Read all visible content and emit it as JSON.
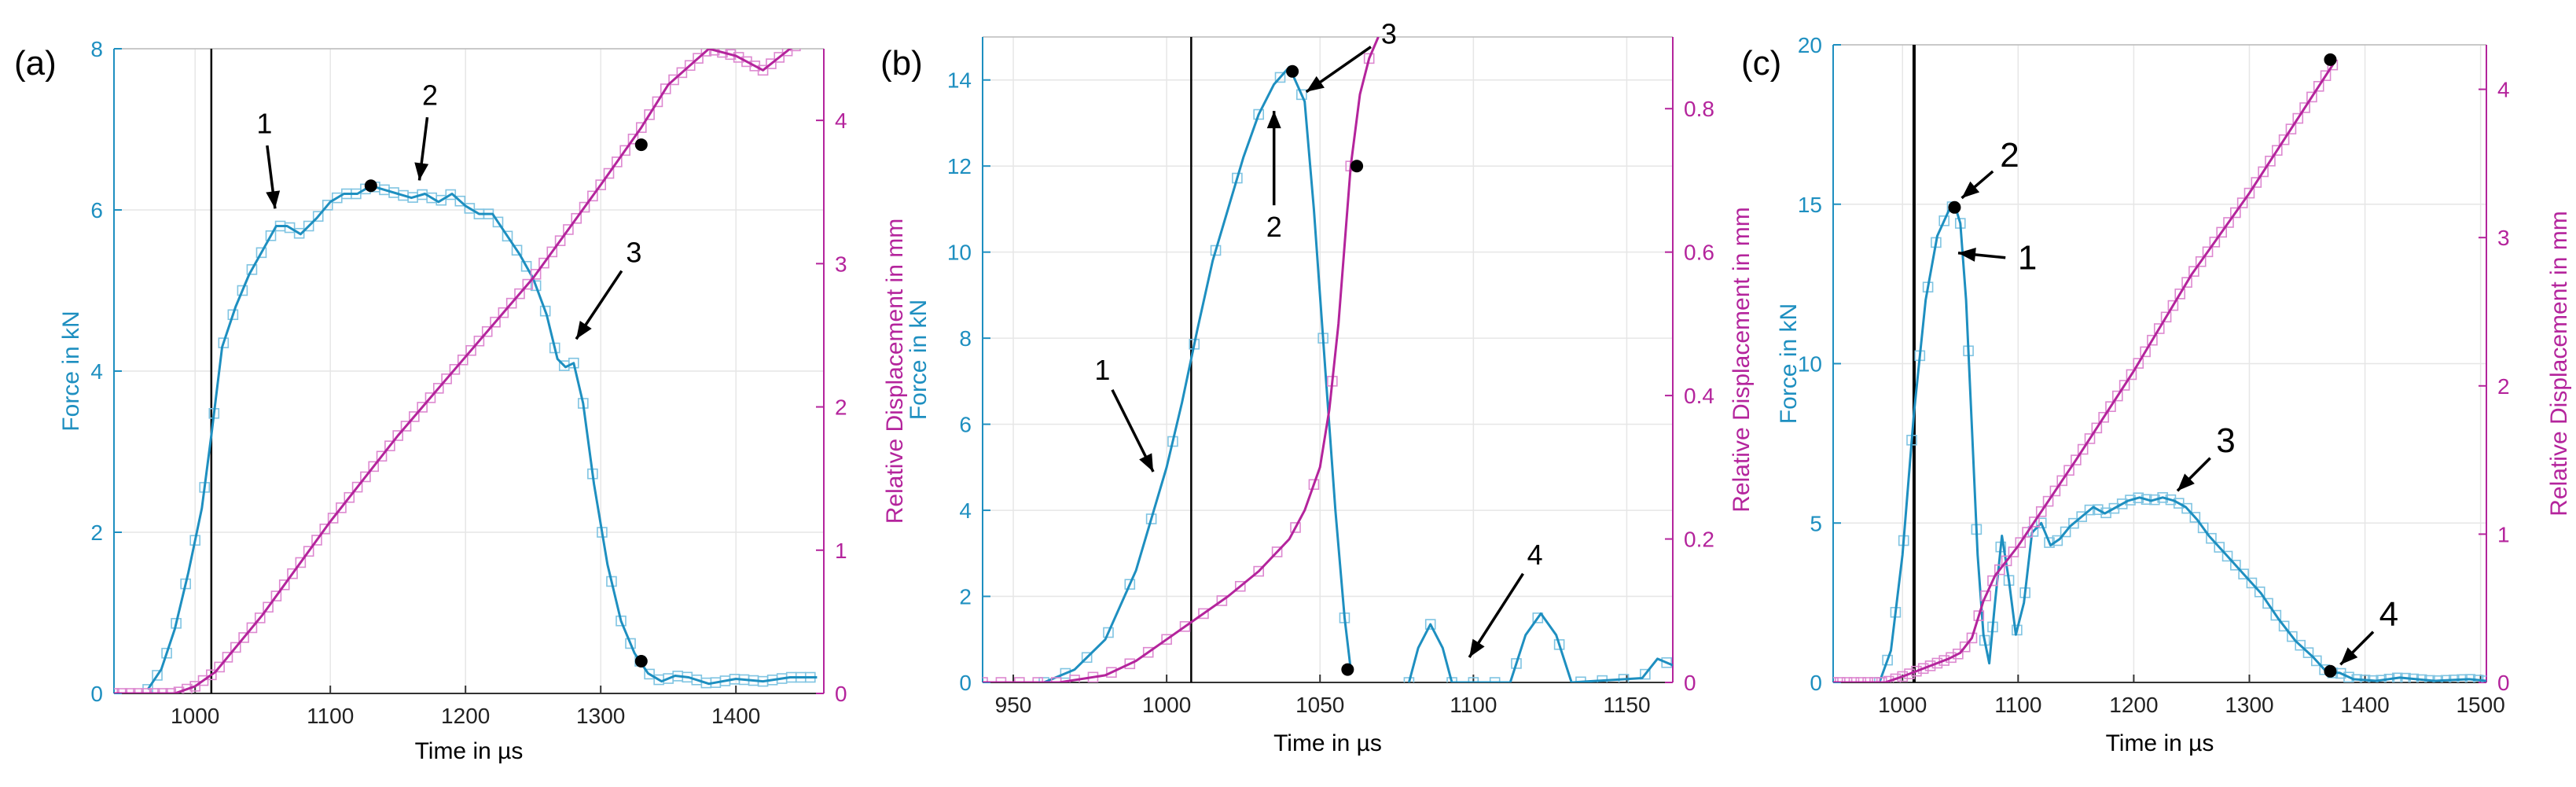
{
  "colors": {
    "force": "#1e8fc0",
    "force_marker": "#7fc4e2",
    "disp": "#b4249c",
    "disp_marker": "#dd88d0",
    "grid": "#e6e6e6",
    "axis": "#333333",
    "text": "#000000"
  },
  "chart_data": [
    {
      "type": "line",
      "panel_label": "(a)",
      "xlabel": "Time in µs",
      "ylabel_left": "Force in kN",
      "ylabel_right": "Relative Displacement in mm",
      "xlim": [
        940,
        1465
      ],
      "ylim_left": [
        0,
        8
      ],
      "ylim_right": [
        0,
        4.5
      ],
      "x_ticks": [
        1000,
        1100,
        1200,
        1300,
        1400
      ],
      "y_ticks_left": [
        0,
        2,
        4,
        6,
        8
      ],
      "y_ticks_right": [
        0,
        1,
        2,
        3,
        4
      ],
      "grid": true,
      "vline_x": 1012,
      "series": [
        {
          "name": "Force",
          "axis": "left",
          "x": [
            965,
            975,
            985,
            995,
            1005,
            1012,
            1020,
            1030,
            1040,
            1050,
            1060,
            1068,
            1078,
            1090,
            1100,
            1110,
            1120,
            1130,
            1140,
            1150,
            1160,
            1170,
            1180,
            1190,
            1200,
            1210,
            1220,
            1230,
            1240,
            1250,
            1260,
            1268,
            1274,
            1280,
            1287,
            1295,
            1305,
            1315,
            1325,
            1335,
            1345,
            1355,
            1365,
            1380,
            1400,
            1420,
            1440,
            1460
          ],
          "values": [
            0.05,
            0.3,
            0.8,
            1.5,
            2.3,
            3.2,
            4.3,
            4.8,
            5.2,
            5.5,
            5.8,
            5.8,
            5.7,
            5.9,
            6.1,
            6.2,
            6.2,
            6.3,
            6.25,
            6.2,
            6.15,
            6.2,
            6.1,
            6.2,
            6.05,
            5.95,
            5.95,
            5.7,
            5.45,
            5.15,
            4.7,
            4.15,
            4.05,
            4.1,
            3.6,
            2.6,
            1.6,
            0.9,
            0.5,
            0.25,
            0.15,
            0.22,
            0.2,
            0.12,
            0.18,
            0.15,
            0.2,
            0.2
          ]
        },
        {
          "name": "Relative Displacement",
          "axis": "right",
          "x": [
            940,
            985,
            1000,
            1015,
            1050,
            1100,
            1150,
            1200,
            1250,
            1300,
            1330,
            1350,
            1380,
            1400,
            1420,
            1440,
            1450,
            1460
          ],
          "values": [
            0,
            0,
            0.05,
            0.15,
            0.55,
            1.2,
            1.8,
            2.35,
            2.9,
            3.55,
            3.95,
            4.25,
            4.5,
            4.45,
            4.35,
            4.5,
            4.55,
            4.55
          ]
        }
      ],
      "marked_points": [
        {
          "axis": "left",
          "x": 1130,
          "y": 6.3
        },
        {
          "axis": "left",
          "x": 1330,
          "y": 0.4
        },
        {
          "axis": "right",
          "x": 1330,
          "y": 3.83
        }
      ],
      "annotations": [
        {
          "text": "1",
          "x": 1060,
          "y": 5.9
        },
        {
          "text": "2",
          "x": 1165,
          "y": 6.25
        },
        {
          "text": "3",
          "x": 1278,
          "y": 4.3
        }
      ]
    },
    {
      "type": "line",
      "panel_label": "(b)",
      "xlabel": "Time in µs",
      "ylabel_left": "Force in kN",
      "ylabel_right": "Relative Displacement in mm",
      "xlim": [
        940,
        1165
      ],
      "ylim_left": [
        0,
        15
      ],
      "ylim_right": [
        0,
        0.9
      ],
      "x_ticks": [
        950,
        1000,
        1050,
        1100,
        1150
      ],
      "y_ticks_left": [
        0,
        2,
        4,
        6,
        8,
        10,
        12,
        14
      ],
      "y_ticks_right": [
        0,
        0.2,
        0.4,
        0.6,
        0.8
      ],
      "grid": true,
      "vline_x": 1008,
      "series": [
        {
          "name": "Force",
          "axis": "left",
          "x": [
            960,
            970,
            980,
            990,
            1000,
            1005,
            1010,
            1015,
            1020,
            1025,
            1030,
            1035,
            1040,
            1045,
            1048,
            1052,
            1055,
            1058,
            1060
          ],
          "values": [
            0,
            0.3,
            1.0,
            2.6,
            5.0,
            6.5,
            8.2,
            9.8,
            11.0,
            12.2,
            13.2,
            13.9,
            14.3,
            13.5,
            11.0,
            7.0,
            4.0,
            1.5,
            0.3
          ]
        },
        {
          "name": "Force (later rebounds)",
          "axis": "left",
          "x": [
            1079,
            1082,
            1086,
            1090,
            1093,
            1112,
            1117,
            1122,
            1127,
            1132,
            1155,
            1160,
            1165
          ],
          "values": [
            0,
            0.8,
            1.35,
            0.8,
            0,
            0,
            1.1,
            1.6,
            1.1,
            0,
            0.1,
            0.55,
            0.4
          ]
        },
        {
          "name": "Relative Displacement",
          "axis": "right",
          "x": [
            940,
            965,
            980,
            990,
            1000,
            1010,
            1020,
            1030,
            1040,
            1045,
            1050,
            1053,
            1056,
            1060,
            1063,
            1066,
            1069
          ],
          "values": [
            0,
            0,
            0.01,
            0.03,
            0.06,
            0.09,
            0.12,
            0.155,
            0.2,
            0.24,
            0.3,
            0.38,
            0.5,
            0.72,
            0.82,
            0.87,
            0.9
          ]
        }
      ],
      "marked_points": [
        {
          "axis": "left",
          "x": 1041,
          "y": 14.2
        },
        {
          "axis": "left",
          "x": 1059,
          "y": 0.3
        },
        {
          "axis": "right",
          "x": 1062,
          "y": 0.72
        }
      ],
      "annotations": [
        {
          "text": "1",
          "x": 997,
          "y": 4.7
        },
        {
          "text": "2",
          "x": 1035,
          "y": 13.5
        },
        {
          "text": "3",
          "x": 1043,
          "y": 13.6
        },
        {
          "text": "4",
          "x": 1097,
          "y": 0.4
        }
      ]
    },
    {
      "type": "line",
      "panel_label": "(c)",
      "xlabel": "Time in µs",
      "ylabel_left": "Force in kN",
      "ylabel_right": "Relative Displacement in mm",
      "xlim": [
        940,
        1505
      ],
      "ylim_left": [
        0,
        20
      ],
      "ylim_right": [
        0,
        4.3
      ],
      "x_ticks": [
        1000,
        1100,
        1200,
        1300,
        1400,
        1500
      ],
      "y_ticks_left": [
        0,
        5,
        10,
        15,
        20
      ],
      "y_ticks_right": [
        0,
        1,
        2,
        3,
        4
      ],
      "grid": true,
      "vline_x": 1010,
      "series": [
        {
          "name": "Force",
          "axis": "left",
          "x": [
            980,
            990,
            1000,
            1010,
            1020,
            1030,
            1040,
            1045,
            1050,
            1055,
            1060,
            1065,
            1070,
            1075,
            1080,
            1086,
            1092,
            1098,
            1105,
            1112,
            1120,
            1128,
            1136,
            1145,
            1155,
            1165,
            1175,
            1185,
            1195,
            1205,
            1215,
            1225,
            1235,
            1245,
            1255,
            1265,
            1280,
            1295,
            1310,
            1325,
            1340,
            1355,
            1365,
            1370,
            1378,
            1390,
            1410,
            1430,
            1460,
            1490,
            1505
          ],
          "values": [
            0,
            1.0,
            4.0,
            8.5,
            12.0,
            14.0,
            14.8,
            15.0,
            14.4,
            12.0,
            8.0,
            4.0,
            1.5,
            0.6,
            2.5,
            4.6,
            3.2,
            1.5,
            2.5,
            4.7,
            5.0,
            4.3,
            4.5,
            4.9,
            5.2,
            5.5,
            5.3,
            5.5,
            5.7,
            5.8,
            5.7,
            5.8,
            5.7,
            5.5,
            5.1,
            4.6,
            4.0,
            3.4,
            2.8,
            2.0,
            1.3,
            0.8,
            0.4,
            0.3,
            0.3,
            0.1,
            0.05,
            0.15,
            0.05,
            0.1,
            0.05
          ]
        },
        {
          "name": "Relative Displacement",
          "axis": "right",
          "x": [
            940,
            985,
            1000,
            1020,
            1040,
            1050,
            1060,
            1070,
            1080,
            1100,
            1150,
            1200,
            1250,
            1300,
            1350,
            1375
          ],
          "values": [
            0,
            0,
            0.04,
            0.1,
            0.16,
            0.2,
            0.3,
            0.55,
            0.72,
            0.92,
            1.5,
            2.1,
            2.75,
            3.3,
            3.9,
            4.2
          ]
        }
      ],
      "marked_points": [
        {
          "axis": "left",
          "x": 1045,
          "y": 14.9
        },
        {
          "axis": "left",
          "x": 1370,
          "y": 0.35
        },
        {
          "axis": "right",
          "x": 1370,
          "y": 4.2
        }
      ],
      "annotations": [
        {
          "text": "1",
          "x": 1040,
          "y": 13.5
        },
        {
          "text": "2",
          "x": 1045,
          "y": 15.0
        },
        {
          "text": "3",
          "x": 1232,
          "y": 5.8
        },
        {
          "text": "4",
          "x": 1373,
          "y": 0.35
        }
      ]
    }
  ]
}
